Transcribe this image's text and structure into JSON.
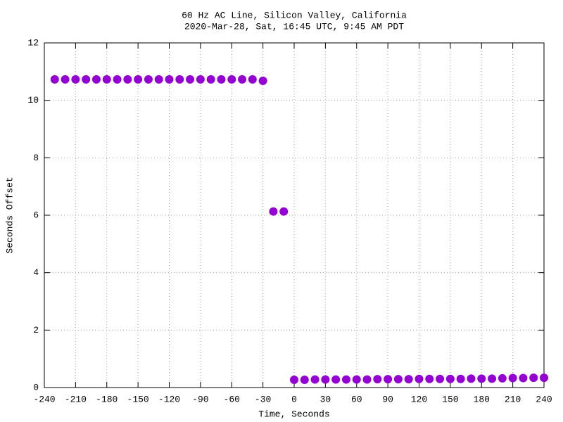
{
  "chart_data": {
    "type": "scatter",
    "title": "60 Hz AC Line, Silicon Valley, California",
    "subtitle": "2020-Mar-28, Sat, 16:45 UTC, 9:45 AM PDT",
    "x_label": "Time, Seconds",
    "y_label": "Seconds Offset",
    "x": [
      -230,
      -220,
      -210,
      -200,
      -190,
      -180,
      -170,
      -160,
      -150,
      -140,
      -130,
      -120,
      -110,
      -100,
      -90,
      -80,
      -70,
      -60,
      -50,
      -40,
      -30,
      -20,
      -10,
      0,
      10,
      20,
      30,
      40,
      50,
      60,
      70,
      80,
      90,
      100,
      110,
      120,
      130,
      140,
      150,
      160,
      170,
      180,
      190,
      200,
      210,
      220,
      230,
      240
    ],
    "series": [
      {
        "color": "#9400d3",
        "values": [
          10.73,
          10.73,
          10.73,
          10.73,
          10.73,
          10.73,
          10.73,
          10.73,
          10.73,
          10.73,
          10.73,
          10.73,
          10.73,
          10.73,
          10.73,
          10.73,
          10.73,
          10.73,
          10.73,
          10.73,
          10.68,
          6.13,
          6.13,
          0.27,
          0.27,
          0.28,
          0.28,
          0.28,
          0.28,
          0.28,
          0.28,
          0.29,
          0.29,
          0.29,
          0.29,
          0.3,
          0.3,
          0.3,
          0.3,
          0.3,
          0.31,
          0.31,
          0.31,
          0.32,
          0.33,
          0.33,
          0.34,
          0.34
        ]
      }
    ],
    "xlim": [
      -240,
      240
    ],
    "xticks": [
      -240,
      -210,
      -180,
      -150,
      -120,
      -90,
      -60,
      -30,
      0,
      30,
      60,
      90,
      120,
      150,
      180,
      210,
      240
    ],
    "ylim": [
      0,
      12
    ],
    "yticks": [
      0,
      2,
      4,
      6,
      8,
      10,
      12
    ],
    "grid": true
  }
}
